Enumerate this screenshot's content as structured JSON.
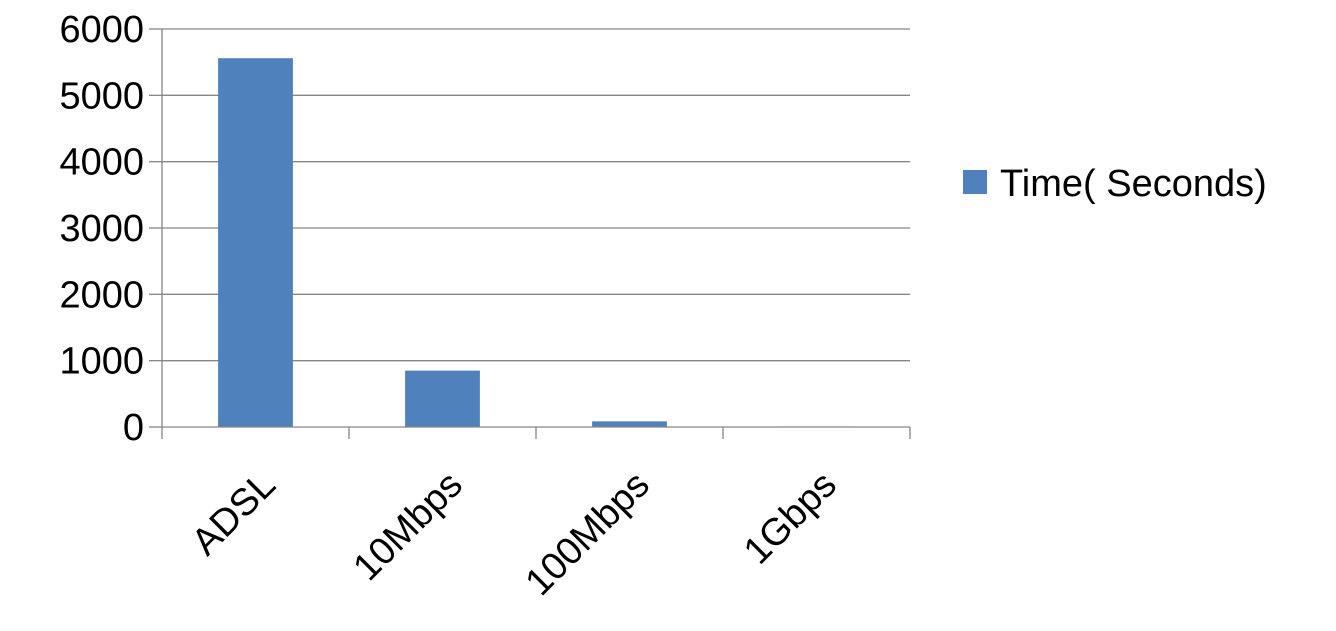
{
  "chart_data": {
    "type": "bar",
    "categories": [
      "ADSL",
      "10Mbps",
      "100Mbps",
      "1Gbps"
    ],
    "series": [
      {
        "name": "Time( Seconds)",
        "values": [
          5560,
          850,
          85,
          8
        ],
        "color": "#4f81bd"
      }
    ],
    "ylim": [
      0,
      6000
    ],
    "yticks": [
      "0",
      "1000",
      "2000",
      "3000",
      "4000",
      "5000",
      "6000"
    ],
    "grid": true,
    "legend_position": "right"
  }
}
